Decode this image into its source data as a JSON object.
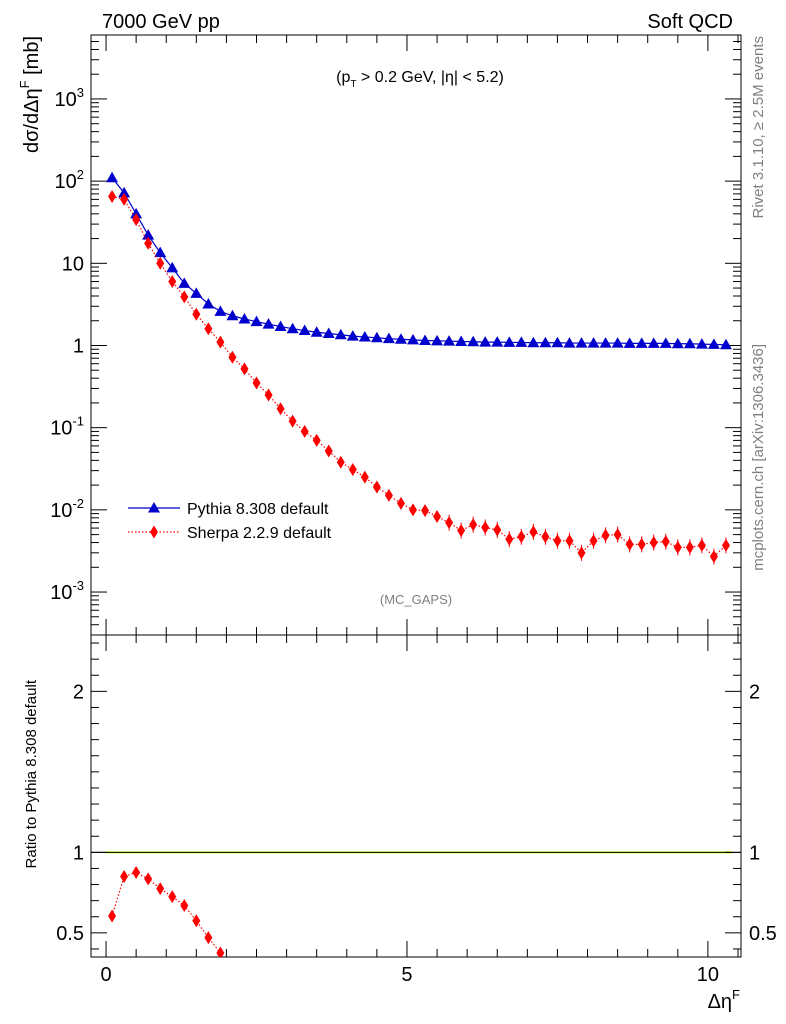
{
  "header": {
    "left": "7000 GeV pp",
    "right": "Soft QCD",
    "cut": "(p_T > 0.2 GeV, |η| < 5.2)",
    "watermark": "(MC_GAPS)",
    "side_top": "Rivet 3.1.10, ≥ 2.5M events",
    "side_bottom": "mcplots.cern.ch [arXiv:1306.3436]"
  },
  "chart_data": [
    {
      "type": "scatter",
      "panel": "main",
      "ylabel": "dσ/dΔη^F [mb]",
      "yscale": "log",
      "ylim": [
        0.0003,
        6000
      ],
      "xlim": [
        -0.25,
        10.55
      ],
      "ytick_labels": [
        "10^-3",
        "10^-2",
        "10^-1",
        "1",
        "10",
        "10^2",
        "10^3"
      ],
      "legend_position": "left-middle",
      "series": [
        {
          "name": "Pythia 8.308 default",
          "color": "#0000cc",
          "marker": "triangle",
          "x": [
            0.1,
            0.3,
            0.5,
            0.7,
            0.9,
            1.1,
            1.3,
            1.5,
            1.7,
            1.9,
            2.1,
            2.3,
            2.5,
            2.7,
            2.9,
            3.1,
            3.3,
            3.5,
            3.7,
            3.9,
            4.1,
            4.3,
            4.5,
            4.7,
            4.9,
            5.1,
            5.3,
            5.5,
            5.7,
            5.9,
            6.1,
            6.3,
            6.5,
            6.7,
            6.9,
            7.1,
            7.3,
            7.5,
            7.7,
            7.9,
            8.1,
            8.3,
            8.5,
            8.7,
            8.9,
            9.1,
            9.3,
            9.5,
            9.7,
            9.9,
            10.1,
            10.3
          ],
          "y": [
            110,
            72,
            40,
            22,
            13.5,
            8.8,
            5.7,
            4.3,
            3.2,
            2.6,
            2.3,
            2.1,
            1.95,
            1.82,
            1.7,
            1.6,
            1.52,
            1.45,
            1.4,
            1.35,
            1.3,
            1.27,
            1.24,
            1.21,
            1.19,
            1.17,
            1.15,
            1.14,
            1.13,
            1.12,
            1.11,
            1.1,
            1.1,
            1.09,
            1.09,
            1.08,
            1.08,
            1.08,
            1.07,
            1.07,
            1.07,
            1.07,
            1.07,
            1.06,
            1.06,
            1.06,
            1.06,
            1.05,
            1.05,
            1.04,
            1.03,
            1.02
          ]
        },
        {
          "name": "Sherpa 2.2.9 default",
          "color": "#ff0000",
          "marker": "diamond",
          "x": [
            0.1,
            0.3,
            0.5,
            0.7,
            0.9,
            1.1,
            1.3,
            1.5,
            1.7,
            1.9,
            2.1,
            2.3,
            2.5,
            2.7,
            2.9,
            3.1,
            3.3,
            3.5,
            3.7,
            3.9,
            4.1,
            4.3,
            4.5,
            4.7,
            4.9,
            5.1,
            5.3,
            5.5,
            5.7,
            5.9,
            6.1,
            6.3,
            6.5,
            6.7,
            6.9,
            7.1,
            7.3,
            7.5,
            7.7,
            7.9,
            8.1,
            8.3,
            8.5,
            8.7,
            8.9,
            9.1,
            9.3,
            9.5,
            9.7,
            9.9,
            10.1,
            10.3
          ],
          "y": [
            65,
            60,
            34,
            17.5,
            10,
            6,
            3.9,
            2.4,
            1.6,
            1.1,
            0.72,
            0.52,
            0.35,
            0.25,
            0.17,
            0.12,
            0.09,
            0.07,
            0.052,
            0.038,
            0.031,
            0.025,
            0.019,
            0.015,
            0.012,
            0.01,
            0.0098,
            0.0083,
            0.007,
            0.0056,
            0.0066,
            0.0061,
            0.0057,
            0.0044,
            0.0047,
            0.0054,
            0.0047,
            0.0042,
            0.0042,
            0.003,
            0.0042,
            0.0049,
            0.005,
            0.0038,
            0.0038,
            0.004,
            0.0041,
            0.0035,
            0.0035,
            0.0037,
            0.0027,
            0.0037
          ]
        }
      ]
    },
    {
      "type": "scatter",
      "panel": "ratio",
      "ylabel": "Ratio to Pythia 8.308 default",
      "xlabel": "Δη^F",
      "ylim": [
        0.35,
        2.35
      ],
      "xlim": [
        -0.25,
        10.55
      ],
      "xtick_labels": [
        "0",
        "5",
        "10"
      ],
      "ytick_labels": [
        "0.5",
        "1",
        "2"
      ],
      "reference_line": 1,
      "band_color": "#ccff33",
      "series": [
        {
          "name": "Sherpa 2.2.9 default",
          "color": "#ff0000",
          "x": [
            0.1,
            0.3,
            0.5,
            0.7,
            0.9,
            1.1,
            1.3,
            1.5,
            1.7,
            1.9
          ],
          "y": [
            0.605,
            0.85,
            0.875,
            0.835,
            0.775,
            0.725,
            0.67,
            0.575,
            0.47,
            0.375
          ]
        }
      ]
    }
  ]
}
